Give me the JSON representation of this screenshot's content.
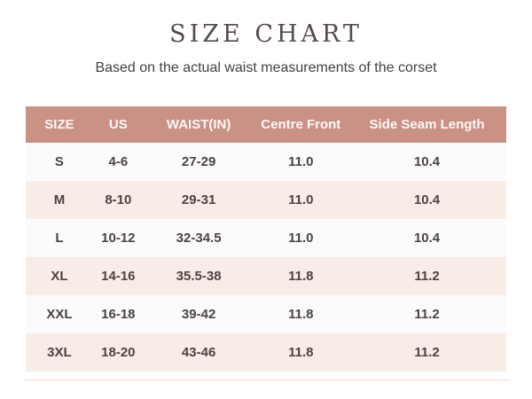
{
  "page": {
    "title": "SIZE CHART",
    "subtitle": "Based on the actual waist measurements of the corset"
  },
  "colors": {
    "header_bg": "#ca9185",
    "header_text": "#fdf8f6",
    "row_light_bg": "#fbfbfb",
    "row_pink_bg": "#f8ece6",
    "body_text": "#4c4243",
    "title_text": "#564c4a"
  },
  "chart_data": {
    "type": "table",
    "title": "SIZE CHART",
    "subtitle": "Based on the actual waist measurements of the corset",
    "columns": [
      "SIZE",
      "US",
      "WAIST(IN)",
      "Centre Front",
      "Side Seam Length"
    ],
    "rows": [
      [
        "S",
        "4-6",
        "27-29",
        "11.0",
        "10.4"
      ],
      [
        "M",
        "8-10",
        "29-31",
        "11.0",
        "10.4"
      ],
      [
        "L",
        "10-12",
        "32-34.5",
        "11.0",
        "10.4"
      ],
      [
        "XL",
        "14-16",
        "35.5-38",
        "11.8",
        "11.2"
      ],
      [
        "XXL",
        "16-18",
        "39-42",
        "11.8",
        "11.2"
      ],
      [
        "3XL",
        "18-20",
        "43-46",
        "11.8",
        "11.2"
      ]
    ],
    "layout": {
      "column_width_percent": [
        14,
        10.5,
        23,
        19.5,
        33
      ],
      "row_striping": "odd rows near-white, even rows light pink",
      "header_style": "rose background, white bold text"
    }
  }
}
